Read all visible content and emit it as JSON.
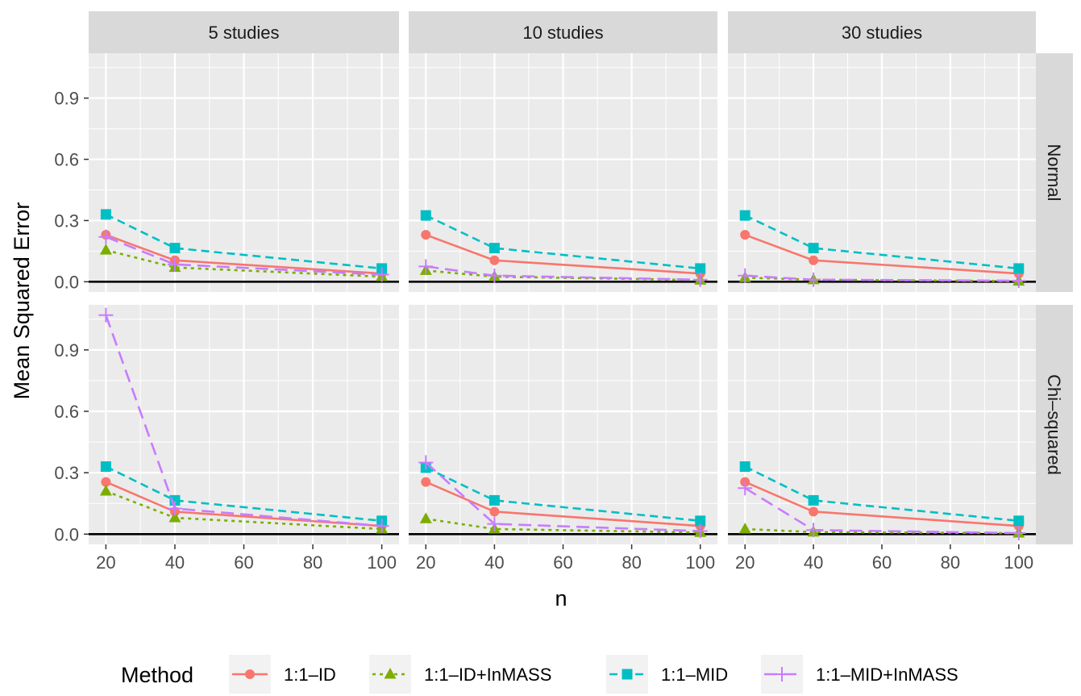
{
  "chart_data": {
    "type": "line",
    "xlabel": "n",
    "ylabel": "Mean Squared Error",
    "x": [
      20,
      40,
      100
    ],
    "xlim": [
      15,
      105
    ],
    "ylim": [
      -0.05,
      1.12
    ],
    "xticks": [
      "20",
      "40",
      "60",
      "80",
      "100"
    ],
    "yticks": [
      "0.0",
      "0.3",
      "0.6",
      "0.9"
    ],
    "grid": true,
    "columns": [
      "5 studies",
      "10 studies",
      "30 studies"
    ],
    "rows": [
      "Normal",
      "Chi–squared"
    ],
    "legend": {
      "title": "Method",
      "placement": "bottom",
      "items": [
        "1:1–ID",
        "1:1–ID+InMASS",
        "1:1–MID",
        "1:1–MID+InMASS"
      ]
    },
    "series_styles": [
      {
        "color": "#F8766D",
        "dash": "",
        "marker": "circle"
      },
      {
        "color": "#7CAE00",
        "dash": "4,5",
        "marker": "triangle"
      },
      {
        "color": "#00BFC4",
        "dash": "10,6",
        "marker": "square"
      },
      {
        "color": "#C77CFF",
        "dash": "16,8",
        "marker": "plus"
      }
    ],
    "panels": [
      {
        "row": 0,
        "col": 0,
        "series": [
          {
            "name": "1:1–ID",
            "values": [
              0.23,
              0.105,
              0.04
            ]
          },
          {
            "name": "1:1–ID+InMASS",
            "values": [
              0.155,
              0.07,
              0.025
            ]
          },
          {
            "name": "1:1–MID",
            "values": [
              0.33,
              0.165,
              0.065
            ]
          },
          {
            "name": "1:1–MID+InMASS",
            "values": [
              0.22,
              0.085,
              0.035
            ]
          }
        ]
      },
      {
        "row": 0,
        "col": 1,
        "series": [
          {
            "name": "1:1–ID",
            "values": [
              0.23,
              0.105,
              0.04
            ]
          },
          {
            "name": "1:1–ID+InMASS",
            "values": [
              0.055,
              0.025,
              0.008
            ]
          },
          {
            "name": "1:1–MID",
            "values": [
              0.325,
              0.165,
              0.065
            ]
          },
          {
            "name": "1:1–MID+InMASS",
            "values": [
              0.075,
              0.03,
              0.01
            ]
          }
        ]
      },
      {
        "row": 0,
        "col": 2,
        "series": [
          {
            "name": "1:1–ID",
            "values": [
              0.23,
              0.105,
              0.04
            ]
          },
          {
            "name": "1:1–ID+InMASS",
            "values": [
              0.02,
              0.01,
              0.003
            ]
          },
          {
            "name": "1:1–MID",
            "values": [
              0.325,
              0.165,
              0.065
            ]
          },
          {
            "name": "1:1–MID+InMASS",
            "values": [
              0.03,
              0.01,
              0.005
            ]
          }
        ]
      },
      {
        "row": 1,
        "col": 0,
        "series": [
          {
            "name": "1:1–ID",
            "values": [
              0.255,
              0.11,
              0.04
            ]
          },
          {
            "name": "1:1–ID+InMASS",
            "values": [
              0.21,
              0.08,
              0.025
            ]
          },
          {
            "name": "1:1–MID",
            "values": [
              0.33,
              0.165,
              0.065
            ]
          },
          {
            "name": "1:1–MID+InMASS",
            "values": [
              1.07,
              0.125,
              0.04
            ]
          }
        ]
      },
      {
        "row": 1,
        "col": 1,
        "series": [
          {
            "name": "1:1–ID",
            "values": [
              0.255,
              0.11,
              0.04
            ]
          },
          {
            "name": "1:1–ID+InMASS",
            "values": [
              0.075,
              0.025,
              0.008
            ]
          },
          {
            "name": "1:1–MID",
            "values": [
              0.325,
              0.165,
              0.065
            ]
          },
          {
            "name": "1:1–MID+InMASS",
            "values": [
              0.35,
              0.05,
              0.015
            ]
          }
        ]
      },
      {
        "row": 1,
        "col": 2,
        "series": [
          {
            "name": "1:1–ID",
            "values": [
              0.255,
              0.11,
              0.04
            ]
          },
          {
            "name": "1:1–ID+InMASS",
            "values": [
              0.025,
              0.01,
              0.005
            ]
          },
          {
            "name": "1:1–MID",
            "values": [
              0.33,
              0.165,
              0.065
            ]
          },
          {
            "name": "1:1–MID+InMASS",
            "values": [
              0.225,
              0.02,
              0.005
            ]
          }
        ]
      }
    ]
  }
}
